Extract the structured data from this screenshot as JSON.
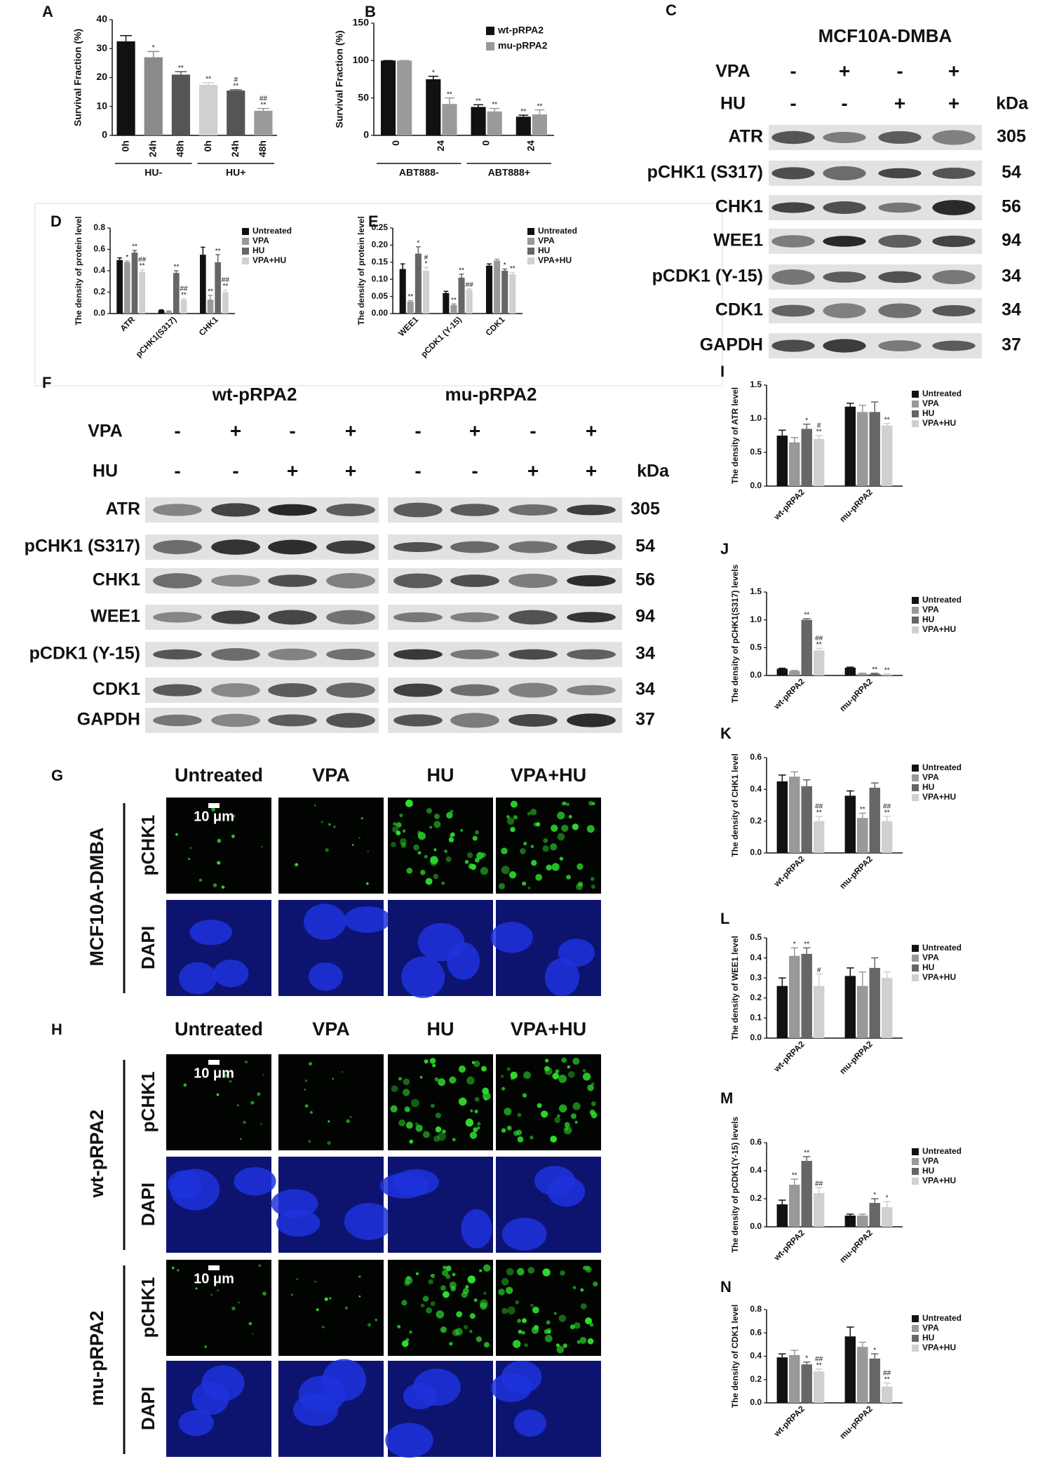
{
  "chart_data": [
    {
      "type": "bar",
      "label": "A",
      "ylabel": "Survival Fraction (%)",
      "categories": [
        "0h",
        "24h",
        "48h",
        "0h",
        "24h",
        "48h"
      ],
      "groups": [
        "HU-",
        "HU+"
      ],
      "series": [
        {
          "colors": [
            "#111111",
            "#8a8a8a",
            "#555555",
            "#d0d0d0",
            "#555555",
            "#9a9a9a"
          ],
          "values": [
            32.5,
            27,
            21,
            17.5,
            15.5,
            8.5
          ],
          "errors": [
            2,
            2,
            1,
            0.7,
            0.3,
            0.8
          ],
          "annotations": [
            [],
            [
              "*"
            ],
            [
              "**"
            ],
            [
              "**"
            ],
            [
              "#",
              "**"
            ],
            [
              "##",
              "**"
            ]
          ]
        }
      ],
      "ylim": [
        0,
        40
      ],
      "yticks": [
        0,
        10,
        20,
        30,
        40
      ]
    },
    {
      "type": "bar",
      "label": "B",
      "ylabel": "Survival Fraction (%)",
      "categories": [
        "0",
        "24",
        "0",
        "24"
      ],
      "groups": [
        "ABT888-",
        "ABT888+"
      ],
      "series": [
        {
          "name": "wt-pRPA2",
          "color": "#111111",
          "values": [
            100,
            75,
            38,
            25
          ],
          "errors": [
            0,
            4,
            3,
            2
          ],
          "annotations": [
            [],
            [
              "*"
            ],
            [
              "**"
            ],
            [
              "**"
            ]
          ]
        },
        {
          "name": "mu-pRPA2",
          "color": "#9a9a9a",
          "values": [
            100,
            42,
            32,
            28
          ],
          "errors": [
            0,
            8,
            4,
            6
          ],
          "annotations": [
            [],
            [
              "**"
            ],
            [
              "**"
            ],
            [
              "**"
            ]
          ]
        }
      ],
      "ylim": [
        0,
        150
      ],
      "yticks": [
        0,
        50,
        100,
        150
      ]
    },
    {
      "type": "bar",
      "label": "D",
      "ylabel": "The density of protein level",
      "categories": [
        "ATR",
        "pCHK1(S317)",
        "CHK1"
      ],
      "series": [
        {
          "name": "Untreated",
          "color": "#111111",
          "values": [
            0.5,
            0.03,
            0.55
          ],
          "errors": [
            0.02,
            0.005,
            0.07
          ],
          "annotations": [
            [],
            [],
            []
          ]
        },
        {
          "name": "VPA",
          "color": "#999999",
          "values": [
            0.48,
            0.02,
            0.13
          ],
          "errors": [
            0.01,
            0.005,
            0.04
          ],
          "annotations": [
            [
              "*"
            ],
            [],
            [
              "**"
            ]
          ]
        },
        {
          "name": "HU",
          "color": "#666666",
          "values": [
            0.57,
            0.38,
            0.48
          ],
          "errors": [
            0.02,
            0.02,
            0.07
          ],
          "annotations": [
            [
              "**"
            ],
            [
              "**"
            ],
            [
              "**"
            ]
          ]
        },
        {
          "name": "VPA+HU",
          "color": "#d0d0d0",
          "values": [
            0.39,
            0.13,
            0.2
          ],
          "errors": [
            0.02,
            0.01,
            0.02
          ],
          "annotations": [
            [
              "##",
              "**"
            ],
            [
              "##",
              "**"
            ],
            [
              "##",
              "**"
            ]
          ]
        }
      ],
      "ylim": [
        0,
        0.8
      ],
      "yticks": [
        {
          "value": 0,
          "label": "0.0"
        },
        0.2,
        0.4,
        0.6,
        0.8
      ]
    },
    {
      "type": "bar",
      "label": "E",
      "ylabel": "The density of protein level",
      "categories": [
        "WEE1",
        "pCDK1 (Y-15)",
        "CDK1"
      ],
      "series": [
        {
          "name": "Untreated",
          "color": "#111111",
          "values": [
            0.13,
            0.06,
            0.14
          ],
          "errors": [
            0.015,
            0.005,
            0.005
          ],
          "annotations": [
            [],
            [],
            []
          ]
        },
        {
          "name": "VPA",
          "color": "#999999",
          "values": [
            0.035,
            0.025,
            0.155
          ],
          "errors": [
            0.003,
            0.003,
            0.004
          ],
          "annotations": [
            [
              "**"
            ],
            [
              "**"
            ],
            []
          ]
        },
        {
          "name": "HU",
          "color": "#666666",
          "values": [
            0.175,
            0.105,
            0.125
          ],
          "errors": [
            0.02,
            0.01,
            0.005
          ],
          "annotations": [
            [
              "*"
            ],
            [
              "**"
            ],
            [
              "*"
            ]
          ]
        },
        {
          "name": "VPA+HU",
          "color": "#d0d0d0",
          "values": [
            0.125,
            0.07,
            0.115
          ],
          "errors": [
            0.01,
            0.003,
            0.005
          ],
          "annotations": [
            [
              "#",
              "*"
            ],
            [
              "##"
            ],
            [
              "**"
            ]
          ]
        }
      ],
      "ylim": [
        0,
        0.25
      ],
      "yticks": [
        {
          "value": 0,
          "label": "0.00"
        },
        0.05,
        {
          "value": 0.1,
          "label": "0.10"
        },
        0.15,
        {
          "value": 0.2,
          "label": "0.20"
        },
        0.25
      ]
    },
    {
      "type": "bar",
      "label": "I",
      "ylabel": "The density of ATR level",
      "categories": [
        "wt-pRPA2",
        "mu-pRPA2"
      ],
      "series": [
        {
          "name": "Untreated",
          "color": "#111111",
          "values": [
            0.75,
            1.18
          ],
          "errors": [
            0.08,
            0.05
          ],
          "annotations": [
            [],
            []
          ]
        },
        {
          "name": "VPA",
          "color": "#999999",
          "values": [
            0.65,
            1.1
          ],
          "errors": [
            0.07,
            0.1
          ],
          "annotations": [
            [],
            []
          ]
        },
        {
          "name": "HU",
          "color": "#666666",
          "values": [
            0.85,
            1.1
          ],
          "errors": [
            0.07,
            0.15
          ],
          "annotations": [
            [
              "*"
            ],
            []
          ]
        },
        {
          "name": "VPA+HU",
          "color": "#d0d0d0",
          "values": [
            0.7,
            0.9
          ],
          "errors": [
            0.05,
            0.03
          ],
          "annotations": [
            [
              "#",
              "**"
            ],
            [
              "**"
            ]
          ]
        }
      ],
      "ylim": [
        0,
        1.5
      ],
      "yticks": [
        {
          "value": 0,
          "label": "0.0"
        },
        0.5,
        {
          "value": 1,
          "label": "1.0"
        },
        1.5
      ]
    },
    {
      "type": "bar",
      "label": "J",
      "ylabel": "The density of pCHK1(S317) levels",
      "categories": [
        "wt-pRPA2",
        "mu-pRPA2"
      ],
      "series": [
        {
          "name": "Untreated",
          "color": "#111111",
          "values": [
            0.12,
            0.14
          ],
          "errors": [
            0.01,
            0.01
          ],
          "annotations": [
            [],
            []
          ]
        },
        {
          "name": "VPA",
          "color": "#999999",
          "values": [
            0.08,
            0.03
          ],
          "errors": [
            0.01,
            0.01
          ],
          "annotations": [
            [],
            []
          ]
        },
        {
          "name": "HU",
          "color": "#666666",
          "values": [
            1.0,
            0.03
          ],
          "errors": [
            0.02,
            0.01
          ],
          "annotations": [
            [
              "**"
            ],
            [
              "**"
            ]
          ]
        },
        {
          "name": "VPA+HU",
          "color": "#d0d0d0",
          "values": [
            0.45,
            0.02
          ],
          "errors": [
            0.04,
            0.01
          ],
          "annotations": [
            [
              "##",
              "**"
            ],
            [
              "**"
            ]
          ]
        }
      ],
      "ylim": [
        0,
        1.5
      ],
      "yticks": [
        {
          "value": 0,
          "label": "0.0"
        },
        0.5,
        {
          "value": 1,
          "label": "1.0"
        },
        1.5
      ]
    },
    {
      "type": "bar",
      "label": "K",
      "ylabel": "The density of CHK1 level",
      "categories": [
        "wt-pRPA2",
        "mu-pRPA2"
      ],
      "series": [
        {
          "name": "Untreated",
          "color": "#111111",
          "values": [
            0.45,
            0.36
          ],
          "errors": [
            0.04,
            0.03
          ],
          "annotations": [
            [],
            []
          ]
        },
        {
          "name": "VPA",
          "color": "#999999",
          "values": [
            0.48,
            0.22
          ],
          "errors": [
            0.03,
            0.03
          ],
          "annotations": [
            [],
            [
              "**"
            ]
          ]
        },
        {
          "name": "HU",
          "color": "#666666",
          "values": [
            0.42,
            0.41
          ],
          "errors": [
            0.04,
            0.03
          ],
          "annotations": [
            [],
            []
          ]
        },
        {
          "name": "VPA+HU",
          "color": "#d0d0d0",
          "values": [
            0.2,
            0.2
          ],
          "errors": [
            0.03,
            0.03
          ],
          "annotations": [
            [
              "##",
              "**"
            ],
            [
              "##",
              "**"
            ]
          ]
        }
      ],
      "ylim": [
        0,
        0.6
      ],
      "yticks": [
        {
          "value": 0,
          "label": "0.0"
        },
        0.2,
        0.4,
        0.6
      ]
    },
    {
      "type": "bar",
      "label": "L",
      "ylabel": "The density of WEE1 level",
      "categories": [
        "wt-pRPA2",
        "mu-pRPA2"
      ],
      "series": [
        {
          "name": "Untreated",
          "color": "#111111",
          "values": [
            0.26,
            0.31
          ],
          "errors": [
            0.04,
            0.04
          ],
          "annotations": [
            [],
            []
          ]
        },
        {
          "name": "VPA",
          "color": "#999999",
          "values": [
            0.41,
            0.26
          ],
          "errors": [
            0.04,
            0.07
          ],
          "annotations": [
            [
              "*"
            ],
            []
          ]
        },
        {
          "name": "HU",
          "color": "#666666",
          "values": [
            0.42,
            0.35
          ],
          "errors": [
            0.03,
            0.05
          ],
          "annotations": [
            [
              "**"
            ],
            []
          ]
        },
        {
          "name": "VPA+HU",
          "color": "#d0d0d0",
          "values": [
            0.26,
            0.3
          ],
          "errors": [
            0.06,
            0.03
          ],
          "annotations": [
            [
              "#"
            ],
            []
          ]
        }
      ],
      "ylim": [
        0,
        0.5
      ],
      "yticks": [
        {
          "value": 0,
          "label": "0.0"
        },
        0.1,
        0.2,
        0.3,
        0.4,
        0.5
      ]
    },
    {
      "type": "bar",
      "label": "M",
      "ylabel": "The density of pCDK1(Y-15) levels",
      "categories": [
        "wt-pRPA2",
        "mu-pRPA2"
      ],
      "series": [
        {
          "name": "Untreated",
          "color": "#111111",
          "values": [
            0.16,
            0.08
          ],
          "errors": [
            0.03,
            0.01
          ],
          "annotations": [
            [],
            []
          ]
        },
        {
          "name": "VPA",
          "color": "#999999",
          "values": [
            0.3,
            0.08
          ],
          "errors": [
            0.04,
            0.01
          ],
          "annotations": [
            [
              "**"
            ],
            []
          ]
        },
        {
          "name": "HU",
          "color": "#666666",
          "values": [
            0.47,
            0.17
          ],
          "errors": [
            0.03,
            0.03
          ],
          "annotations": [
            [
              "**"
            ],
            [
              "*"
            ]
          ]
        },
        {
          "name": "VPA+HU",
          "color": "#d0d0d0",
          "values": [
            0.24,
            0.14
          ],
          "errors": [
            0.04,
            0.04
          ],
          "annotations": [
            [
              "##"
            ],
            [
              "*"
            ]
          ]
        }
      ],
      "ylim": [
        0,
        0.6
      ],
      "yticks": [
        {
          "value": 0,
          "label": "0.0"
        },
        0.2,
        0.4,
        0.6
      ]
    },
    {
      "type": "bar",
      "label": "N",
      "ylabel": "The density of CDK1 level",
      "categories": [
        "wt-pRPA2",
        "mu-pRPA2"
      ],
      "series": [
        {
          "name": "Untreated",
          "color": "#111111",
          "values": [
            0.39,
            0.57
          ],
          "errors": [
            0.03,
            0.08
          ],
          "annotations": [
            [],
            []
          ]
        },
        {
          "name": "VPA",
          "color": "#999999",
          "values": [
            0.41,
            0.48
          ],
          "errors": [
            0.04,
            0.04
          ],
          "annotations": [
            [],
            []
          ]
        },
        {
          "name": "HU",
          "color": "#666666",
          "values": [
            0.33,
            0.38
          ],
          "errors": [
            0.02,
            0.04
          ],
          "annotations": [
            [
              "*"
            ],
            [
              "*"
            ]
          ]
        },
        {
          "name": "VPA+HU",
          "color": "#d0d0d0",
          "values": [
            0.27,
            0.14
          ],
          "errors": [
            0.02,
            0.03
          ],
          "annotations": [
            [
              "##",
              "**"
            ],
            [
              "##",
              "**"
            ]
          ]
        }
      ],
      "ylim": [
        0,
        0.8
      ],
      "yticks": [
        {
          "value": 0,
          "label": "0.0"
        },
        0.2,
        0.4,
        0.6,
        0.8
      ]
    }
  ],
  "blot_c": {
    "label": "C",
    "title": "MCF10A-DMBA",
    "treatments": [
      {
        "name": "VPA",
        "lanes": [
          "-",
          "+",
          "-",
          "+"
        ]
      },
      {
        "name": "HU",
        "lanes": [
          "-",
          "-",
          "+",
          "+"
        ]
      }
    ],
    "unit": "kDa",
    "proteins": [
      {
        "name": "ATR",
        "kda": 305
      },
      {
        "name": "pCHK1 (S317)",
        "kda": 54
      },
      {
        "name": "CHK1",
        "kda": 56
      },
      {
        "name": "WEE1",
        "kda": 94
      },
      {
        "name": "pCDK1 (Y-15)",
        "kda": 34
      },
      {
        "name": "CDK1",
        "kda": 34
      },
      {
        "name": "GAPDH",
        "kda": 37
      }
    ]
  },
  "blot_f": {
    "label": "F",
    "groups": [
      "wt-pRPA2",
      "mu-pRPA2"
    ],
    "treatments": [
      {
        "name": "VPA",
        "lanes": [
          "-",
          "+",
          "-",
          "+",
          "-",
          "+",
          "-",
          "+"
        ]
      },
      {
        "name": "HU",
        "lanes": [
          "-",
          "-",
          "+",
          "+",
          "-",
          "-",
          "+",
          "+"
        ]
      }
    ],
    "unit": "kDa",
    "proteins": [
      {
        "name": "ATR",
        "kda": 305
      },
      {
        "name": "pCHK1 (S317)",
        "kda": 54
      },
      {
        "name": "CHK1",
        "kda": 56
      },
      {
        "name": "WEE1",
        "kda": 94
      },
      {
        "name": "pCDK1 (Y-15)",
        "kda": 34
      },
      {
        "name": "CDK1",
        "kda": 34
      },
      {
        "name": "GAPDH",
        "kda": 37
      }
    ]
  },
  "micro_g": {
    "label": "G",
    "columns": [
      "Untreated",
      "VPA",
      "HU",
      "VPA+HU"
    ],
    "groups": [
      {
        "name": "MCF10A-DMBA",
        "rows": [
          "pCHK1",
          "DAPI"
        ],
        "scale_bar": "10 μm"
      }
    ]
  },
  "micro_h": {
    "label": "H",
    "columns": [
      "Untreated",
      "VPA",
      "HU",
      "VPA+HU"
    ],
    "groups": [
      {
        "name": "wt-pRPA2",
        "rows": [
          "pCHK1",
          "DAPI"
        ],
        "scale_bar": "10 μm"
      },
      {
        "name": "mu-pRPA2",
        "rows": [
          "pCHK1",
          "DAPI"
        ],
        "scale_bar": "10 μm"
      }
    ]
  }
}
